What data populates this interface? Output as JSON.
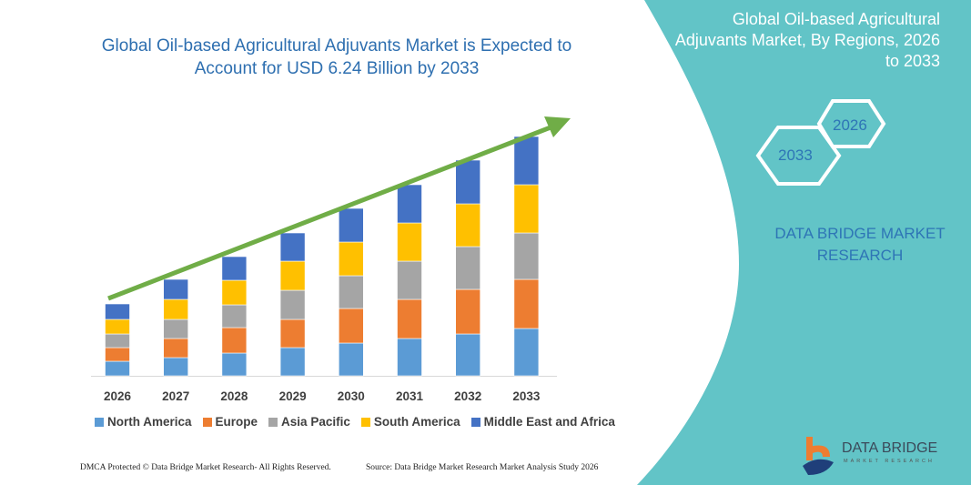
{
  "title": "Global Oil-based Agricultural Adjuvants Market is Expected to Account for USD 6.24 Billion by 2033",
  "side_panel": {
    "title": "Global Oil-based Agricultural Adjuvants Market, By Regions, 2026 to 2033",
    "hex_start": "2026",
    "hex_end": "2033",
    "brand_line1": "DATA BRIDGE MARKET",
    "brand_line2": "RESEARCH",
    "logo_text": "DATA BRIDGE",
    "logo_sub": "MARKET RESEARCH",
    "color": "#62c4c7"
  },
  "footer": {
    "left": "DMCA Protected © Data Bridge Market Research- All Rights Reserved.",
    "right": "Source: Data Bridge Market Research Market Analysis Study 2026"
  },
  "chart_data": {
    "type": "bar",
    "stacked": true,
    "title": "",
    "xlabel": "",
    "ylabel": "",
    "grid": false,
    "legend_position": "bottom",
    "trend_arrow": true,
    "trend_color": "#70ad47",
    "categories": [
      "2026",
      "2027",
      "2028",
      "2029",
      "2030",
      "2031",
      "2032",
      "2033"
    ],
    "series": [
      {
        "name": "North America",
        "color": "#5b9bd5",
        "values": [
          16,
          20,
          25,
          31,
          36,
          41,
          46,
          52
        ]
      },
      {
        "name": "Europe",
        "color": "#ed7d31",
        "values": [
          15,
          21,
          28,
          31,
          38,
          43,
          49,
          54
        ]
      },
      {
        "name": "Asia Pacific",
        "color": "#a5a5a5",
        "values": [
          15,
          21,
          25,
          32,
          36,
          42,
          47,
          51
        ]
      },
      {
        "name": "South America",
        "color": "#ffc000",
        "values": [
          16,
          22,
          27,
          32,
          37,
          42,
          47,
          53
        ]
      },
      {
        "name": "Middle East and Africa",
        "color": "#4472c4",
        "values": [
          17,
          22,
          26,
          31,
          37,
          42,
          48,
          53
        ]
      }
    ]
  }
}
